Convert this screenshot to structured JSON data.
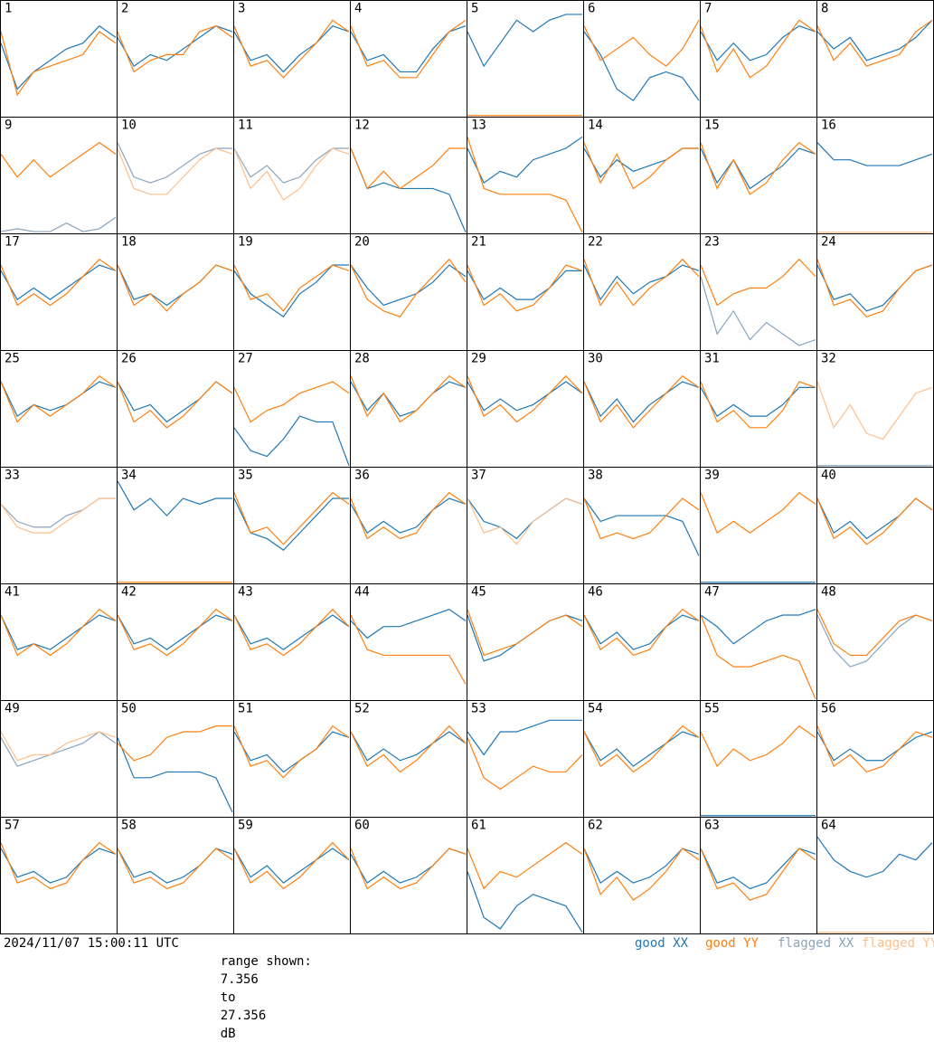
{
  "ylim": [
    7.356,
    27.356
  ],
  "legend": [
    {
      "label": "good XX",
      "color": "#1f77b4"
    },
    {
      "label": "good YY",
      "color": "#ff7f0e"
    },
    {
      "label": "flagged XX",
      "color": "#8aa4bf"
    },
    {
      "label": "flagged YY",
      "color": "#ffbf8a"
    }
  ],
  "footer": {
    "timestamp": "2024/11/07 15:00:11 UTC",
    "range_label": "range shown:",
    "range_join": "to",
    "range_unit": "dB"
  },
  "panels": [
    {
      "label": "1",
      "xx": [
        20,
        12,
        15,
        17,
        19,
        20,
        23,
        21
      ],
      "yy": [
        22,
        11,
        15,
        16,
        17,
        18,
        22,
        20
      ]
    },
    {
      "label": "2",
      "xx": [
        21,
        16,
        18,
        17,
        19,
        21,
        23,
        22
      ],
      "yy": [
        22,
        15,
        17,
        18,
        18,
        22,
        23,
        21
      ]
    },
    {
      "label": "3",
      "xx": [
        22,
        17,
        18,
        15,
        18,
        20,
        23,
        22
      ],
      "yy": [
        23,
        16,
        17,
        14,
        17,
        20,
        24,
        22
      ]
    },
    {
      "label": "4",
      "xx": [
        22,
        17,
        18,
        15,
        15,
        19,
        22,
        23
      ],
      "yy": [
        23,
        16,
        17,
        14,
        14,
        18,
        22,
        24
      ]
    },
    {
      "label": "5",
      "xx": [
        22,
        16,
        20,
        24,
        22,
        24,
        25,
        25
      ],
      "yy": [
        7.4,
        7.4,
        7.4,
        7.4,
        7.4,
        7.4,
        7.4,
        7.4
      ]
    },
    {
      "label": "6",
      "xx": [
        22,
        18,
        12,
        10,
        14,
        15,
        14,
        10
      ],
      "yy": [
        23,
        17,
        19,
        21,
        18,
        16,
        19,
        24
      ]
    },
    {
      "label": "7",
      "xx": [
        22,
        17,
        20,
        17,
        18,
        21,
        23,
        22
      ],
      "yy": [
        23,
        15,
        19,
        14,
        16,
        20,
        24,
        22
      ]
    },
    {
      "label": "8",
      "xx": [
        22,
        19,
        21,
        17,
        18,
        19,
        21,
        24
      ],
      "yy": [
        23,
        17,
        20,
        16,
        17,
        18,
        22,
        24
      ]
    },
    {
      "label": "9",
      "xx": [
        7.5,
        8,
        7.5,
        7.5,
        9,
        7.5,
        8,
        10
      ],
      "yy": [
        21,
        17,
        20,
        17,
        19,
        21,
        23,
        21
      ],
      "xx_flagged": true
    },
    {
      "label": "10",
      "xx": [
        23,
        17,
        16,
        17,
        19,
        21,
        22,
        22
      ],
      "yy": [
        22,
        15,
        14,
        14,
        17,
        20,
        22,
        21
      ],
      "xx_flagged": true,
      "yy_flagged": true
    },
    {
      "label": "11",
      "xx": [
        22,
        17,
        19,
        16,
        17,
        20,
        22,
        22
      ],
      "yy": [
        22,
        15,
        18,
        13,
        15,
        19,
        22,
        21
      ],
      "xx_flagged": true,
      "yy_flagged": true
    },
    {
      "label": "12",
      "xx": [
        22,
        15,
        16,
        15,
        15,
        15,
        14,
        7.4
      ],
      "yy": [
        22,
        15,
        18,
        15,
        17,
        19,
        22,
        22
      ]
    },
    {
      "label": "13",
      "xx": [
        22,
        16,
        18,
        17,
        20,
        21,
        22,
        24
      ],
      "yy": [
        24,
        15,
        14,
        14,
        14,
        14,
        13,
        7.4
      ]
    },
    {
      "label": "14",
      "xx": [
        22,
        17,
        20,
        18,
        19,
        20,
        22,
        22
      ],
      "yy": [
        23,
        16,
        21,
        15,
        17,
        20,
        22,
        22
      ]
    },
    {
      "label": "15",
      "xx": [
        22,
        16,
        20,
        15,
        17,
        19,
        22,
        21
      ],
      "yy": [
        23,
        15,
        20,
        14,
        16,
        20,
        23,
        21
      ]
    },
    {
      "label": "16",
      "xx": [
        23,
        20,
        20,
        19,
        19,
        19,
        20,
        21
      ],
      "yy": [
        7.4,
        7.4,
        7.4,
        7.4,
        7.4,
        7.4,
        7.4,
        7.4
      ],
      "yy_flagged": true
    },
    {
      "label": "17",
      "xx": [
        21,
        16,
        18,
        16,
        18,
        20,
        22,
        21
      ],
      "yy": [
        22,
        15,
        17,
        15,
        17,
        20,
        23,
        21
      ]
    },
    {
      "label": "18",
      "xx": [
        22,
        16,
        17,
        15,
        17,
        19,
        22,
        21
      ],
      "yy": [
        22,
        15,
        17,
        14,
        17,
        19,
        22,
        21
      ]
    },
    {
      "label": "19",
      "xx": [
        21,
        17,
        15,
        13,
        17,
        19,
        22,
        22
      ],
      "yy": [
        22,
        16,
        17,
        14,
        18,
        20,
        22,
        21
      ]
    },
    {
      "label": "20",
      "xx": [
        22,
        18,
        15,
        16,
        17,
        19,
        22,
        20
      ],
      "yy": [
        22,
        16,
        14,
        13,
        17,
        20,
        23,
        19
      ]
    },
    {
      "label": "21",
      "xx": [
        21,
        16,
        18,
        16,
        16,
        18,
        21,
        21
      ],
      "yy": [
        22,
        15,
        17,
        14,
        15,
        18,
        22,
        21
      ]
    },
    {
      "label": "22",
      "xx": [
        22,
        16,
        20,
        17,
        19,
        20,
        22,
        21
      ],
      "yy": [
        23,
        15,
        19,
        15,
        18,
        20,
        23,
        20
      ]
    },
    {
      "label": "23",
      "xx": [
        20,
        10,
        14,
        9,
        12,
        10,
        8,
        9
      ],
      "yy": [
        22,
        15,
        17,
        18,
        18,
        20,
        23,
        20
      ],
      "xx_flagged": true
    },
    {
      "label": "24",
      "xx": [
        22,
        16,
        17,
        14,
        15,
        18,
        21,
        22
      ],
      "yy": [
        23,
        15,
        16,
        13,
        14,
        18,
        21,
        22
      ]
    },
    {
      "label": "25",
      "xx": [
        22,
        16,
        18,
        17,
        18,
        20,
        22,
        21
      ],
      "yy": [
        22,
        15,
        18,
        16,
        18,
        20,
        23,
        21
      ]
    },
    {
      "label": "26",
      "xx": [
        22,
        17,
        18,
        15,
        17,
        19,
        22,
        20
      ],
      "yy": [
        22,
        15,
        17,
        14,
        16,
        19,
        22,
        20
      ]
    },
    {
      "label": "27",
      "xx": [
        14,
        10,
        9,
        12,
        16,
        15,
        15,
        7.4
      ],
      "yy": [
        21,
        15,
        17,
        18,
        20,
        21,
        22,
        20
      ]
    },
    {
      "label": "28",
      "xx": [
        22,
        17,
        20,
        16,
        17,
        20,
        22,
        21
      ],
      "yy": [
        23,
        16,
        20,
        15,
        17,
        20,
        23,
        21
      ]
    },
    {
      "label": "29",
      "xx": [
        22,
        17,
        19,
        17,
        18,
        20,
        22,
        20
      ],
      "yy": [
        23,
        16,
        18,
        15,
        17,
        20,
        23,
        20
      ]
    },
    {
      "label": "30",
      "xx": [
        22,
        16,
        19,
        15,
        18,
        20,
        22,
        21
      ],
      "yy": [
        22,
        15,
        18,
        14,
        17,
        20,
        23,
        21
      ]
    },
    {
      "label": "31",
      "xx": [
        21,
        16,
        18,
        16,
        16,
        18,
        21,
        21
      ],
      "yy": [
        22,
        15,
        17,
        14,
        14,
        17,
        22,
        21
      ]
    },
    {
      "label": "32",
      "xx": [
        7.4,
        7.4,
        7.4,
        7.4,
        7.4,
        7.4,
        7.4,
        7.4
      ],
      "yy": [
        22,
        14,
        18,
        13,
        12,
        16,
        20,
        21
      ],
      "xx_flagged": true,
      "yy_flagged": true
    },
    {
      "label": "33",
      "xx": [
        21,
        18,
        17,
        17,
        19,
        20,
        22,
        22
      ],
      "yy": [
        21,
        17,
        16,
        16,
        18,
        20,
        22,
        22
      ],
      "xx_flagged": true,
      "yy_flagged": true
    },
    {
      "label": "34",
      "xx": [
        25,
        20,
        22,
        19,
        22,
        21,
        22,
        22
      ],
      "yy": [
        7.4,
        7.4,
        7.4,
        7.4,
        7.4,
        7.4,
        7.4,
        7.4
      ]
    },
    {
      "label": "35",
      "xx": [
        22,
        16,
        15,
        13,
        16,
        19,
        22,
        22
      ],
      "yy": [
        23,
        16,
        17,
        14,
        17,
        20,
        23,
        21
      ]
    },
    {
      "label": "36",
      "xx": [
        21,
        16,
        18,
        16,
        17,
        20,
        22,
        21
      ],
      "yy": [
        22,
        15,
        17,
        15,
        16,
        20,
        23,
        21
      ]
    },
    {
      "label": "37",
      "xx": [
        22,
        18,
        17,
        15,
        18,
        20,
        22,
        21
      ],
      "yy": [
        22,
        16,
        17,
        14,
        18,
        20,
        22,
        21
      ],
      "yy_flagged": true
    },
    {
      "label": "38",
      "xx": [
        22,
        18,
        19,
        19,
        19,
        19,
        18,
        12
      ],
      "yy": [
        22,
        15,
        16,
        15,
        16,
        19,
        22,
        20
      ]
    },
    {
      "label": "39",
      "xx": [
        7.4,
        7.4,
        7.4,
        7.4,
        7.4,
        7.4,
        7.4,
        7.4
      ],
      "yy": [
        23,
        16,
        18,
        16,
        18,
        20,
        23,
        21
      ]
    },
    {
      "label": "40",
      "xx": [
        22,
        16,
        18,
        15,
        17,
        19,
        22,
        20
      ],
      "yy": [
        22,
        15,
        17,
        14,
        16,
        19,
        22,
        20
      ]
    },
    {
      "label": "41",
      "xx": [
        22,
        16,
        17,
        16,
        18,
        20,
        22,
        21
      ],
      "yy": [
        22,
        15,
        17,
        15,
        17,
        20,
        23,
        21
      ]
    },
    {
      "label": "42",
      "xx": [
        22,
        17,
        18,
        16,
        18,
        20,
        22,
        21
      ],
      "yy": [
        22,
        16,
        17,
        15,
        17,
        20,
        23,
        21
      ]
    },
    {
      "label": "43",
      "xx": [
        22,
        17,
        18,
        16,
        18,
        20,
        22,
        20
      ],
      "yy": [
        22,
        16,
        17,
        15,
        17,
        20,
        23,
        20
      ]
    },
    {
      "label": "44",
      "xx": [
        21,
        18,
        20,
        20,
        21,
        22,
        23,
        21
      ],
      "yy": [
        22,
        16,
        15,
        15,
        15,
        15,
        15,
        10
      ]
    },
    {
      "label": "45",
      "xx": [
        22,
        14,
        15,
        17,
        19,
        21,
        22,
        21
      ],
      "yy": [
        23,
        15,
        16,
        17,
        19,
        21,
        22,
        20
      ]
    },
    {
      "label": "46",
      "xx": [
        22,
        17,
        19,
        16,
        17,
        20,
        22,
        21
      ],
      "yy": [
        22,
        16,
        18,
        15,
        16,
        20,
        23,
        21
      ]
    },
    {
      "label": "47",
      "xx": [
        22,
        20,
        17,
        19,
        21,
        22,
        22,
        23
      ],
      "yy": [
        22,
        15,
        13,
        13,
        14,
        15,
        14,
        7.4
      ]
    },
    {
      "label": "48",
      "xx": [
        22,
        16,
        13,
        14,
        17,
        20,
        22,
        21
      ],
      "yy": [
        23,
        17,
        15,
        15,
        18,
        21,
        22,
        21
      ],
      "xx_flagged": true
    },
    {
      "label": "49",
      "xx": [
        21,
        16,
        17,
        18,
        19,
        20,
        22,
        20
      ],
      "yy": [
        22,
        17,
        18,
        18,
        20,
        21,
        22,
        21
      ],
      "xx_flagged": true,
      "yy_flagged": true
    },
    {
      "label": "50",
      "xx": [
        21,
        14,
        14,
        15,
        15,
        15,
        14,
        8
      ],
      "yy": [
        20,
        17,
        18,
        21,
        22,
        22,
        23,
        23
      ]
    },
    {
      "label": "51",
      "xx": [
        22,
        17,
        18,
        15,
        17,
        19,
        22,
        21
      ],
      "yy": [
        23,
        16,
        17,
        14,
        17,
        19,
        23,
        21
      ]
    },
    {
      "label": "52",
      "xx": [
        22,
        17,
        19,
        17,
        18,
        20,
        22,
        20
      ],
      "yy": [
        22,
        16,
        18,
        15,
        17,
        20,
        23,
        20
      ]
    },
    {
      "label": "53",
      "xx": [
        22,
        18,
        22,
        22,
        23,
        24,
        24,
        24
      ],
      "yy": [
        21,
        14,
        12,
        14,
        16,
        15,
        15,
        18
      ]
    },
    {
      "label": "54",
      "xx": [
        22,
        17,
        19,
        16,
        18,
        20,
        22,
        21
      ],
      "yy": [
        22,
        16,
        18,
        15,
        17,
        20,
        23,
        21
      ]
    },
    {
      "label": "55",
      "xx": [
        7.4,
        7.4,
        7.4,
        7.4,
        7.4,
        7.4,
        7.4,
        7.4
      ],
      "yy": [
        22,
        16,
        19,
        17,
        18,
        20,
        23,
        21
      ]
    },
    {
      "label": "56",
      "xx": [
        22,
        17,
        19,
        17,
        17,
        19,
        21,
        22
      ],
      "yy": [
        23,
        16,
        18,
        15,
        16,
        19,
        22,
        21
      ]
    },
    {
      "label": "57",
      "xx": [
        22,
        17,
        18,
        16,
        17,
        20,
        22,
        21
      ],
      "yy": [
        23,
        16,
        17,
        15,
        16,
        20,
        23,
        21
      ]
    },
    {
      "label": "58",
      "xx": [
        22,
        17,
        18,
        16,
        17,
        19,
        22,
        21
      ],
      "yy": [
        22,
        16,
        17,
        15,
        16,
        19,
        22,
        20
      ]
    },
    {
      "label": "59",
      "xx": [
        22,
        17,
        19,
        16,
        18,
        20,
        22,
        20
      ],
      "yy": [
        22,
        16,
        18,
        15,
        17,
        20,
        23,
        20
      ]
    },
    {
      "label": "60",
      "xx": [
        21,
        16,
        18,
        16,
        17,
        19,
        22,
        21
      ],
      "yy": [
        22,
        15,
        17,
        15,
        16,
        19,
        22,
        21
      ]
    },
    {
      "label": "61",
      "xx": [
        18,
        10,
        8,
        12,
        14,
        13,
        12,
        7.4
      ],
      "yy": [
        22,
        15,
        18,
        17,
        19,
        21,
        23,
        21
      ]
    },
    {
      "label": "62",
      "xx": [
        22,
        16,
        18,
        16,
        17,
        19,
        22,
        21
      ],
      "yy": [
        22,
        14,
        17,
        13,
        15,
        18,
        22,
        20
      ]
    },
    {
      "label": "63",
      "xx": [
        22,
        16,
        17,
        15,
        16,
        19,
        22,
        21
      ],
      "yy": [
        22,
        15,
        16,
        13,
        14,
        18,
        22,
        20
      ]
    },
    {
      "label": "64",
      "xx": [
        24,
        20,
        18,
        17,
        18,
        21,
        20,
        23
      ],
      "yy": [
        7.4,
        7.4,
        7.4,
        7.4,
        7.4,
        7.4,
        7.4,
        7.4
      ],
      "yy_flagged": true
    }
  ]
}
